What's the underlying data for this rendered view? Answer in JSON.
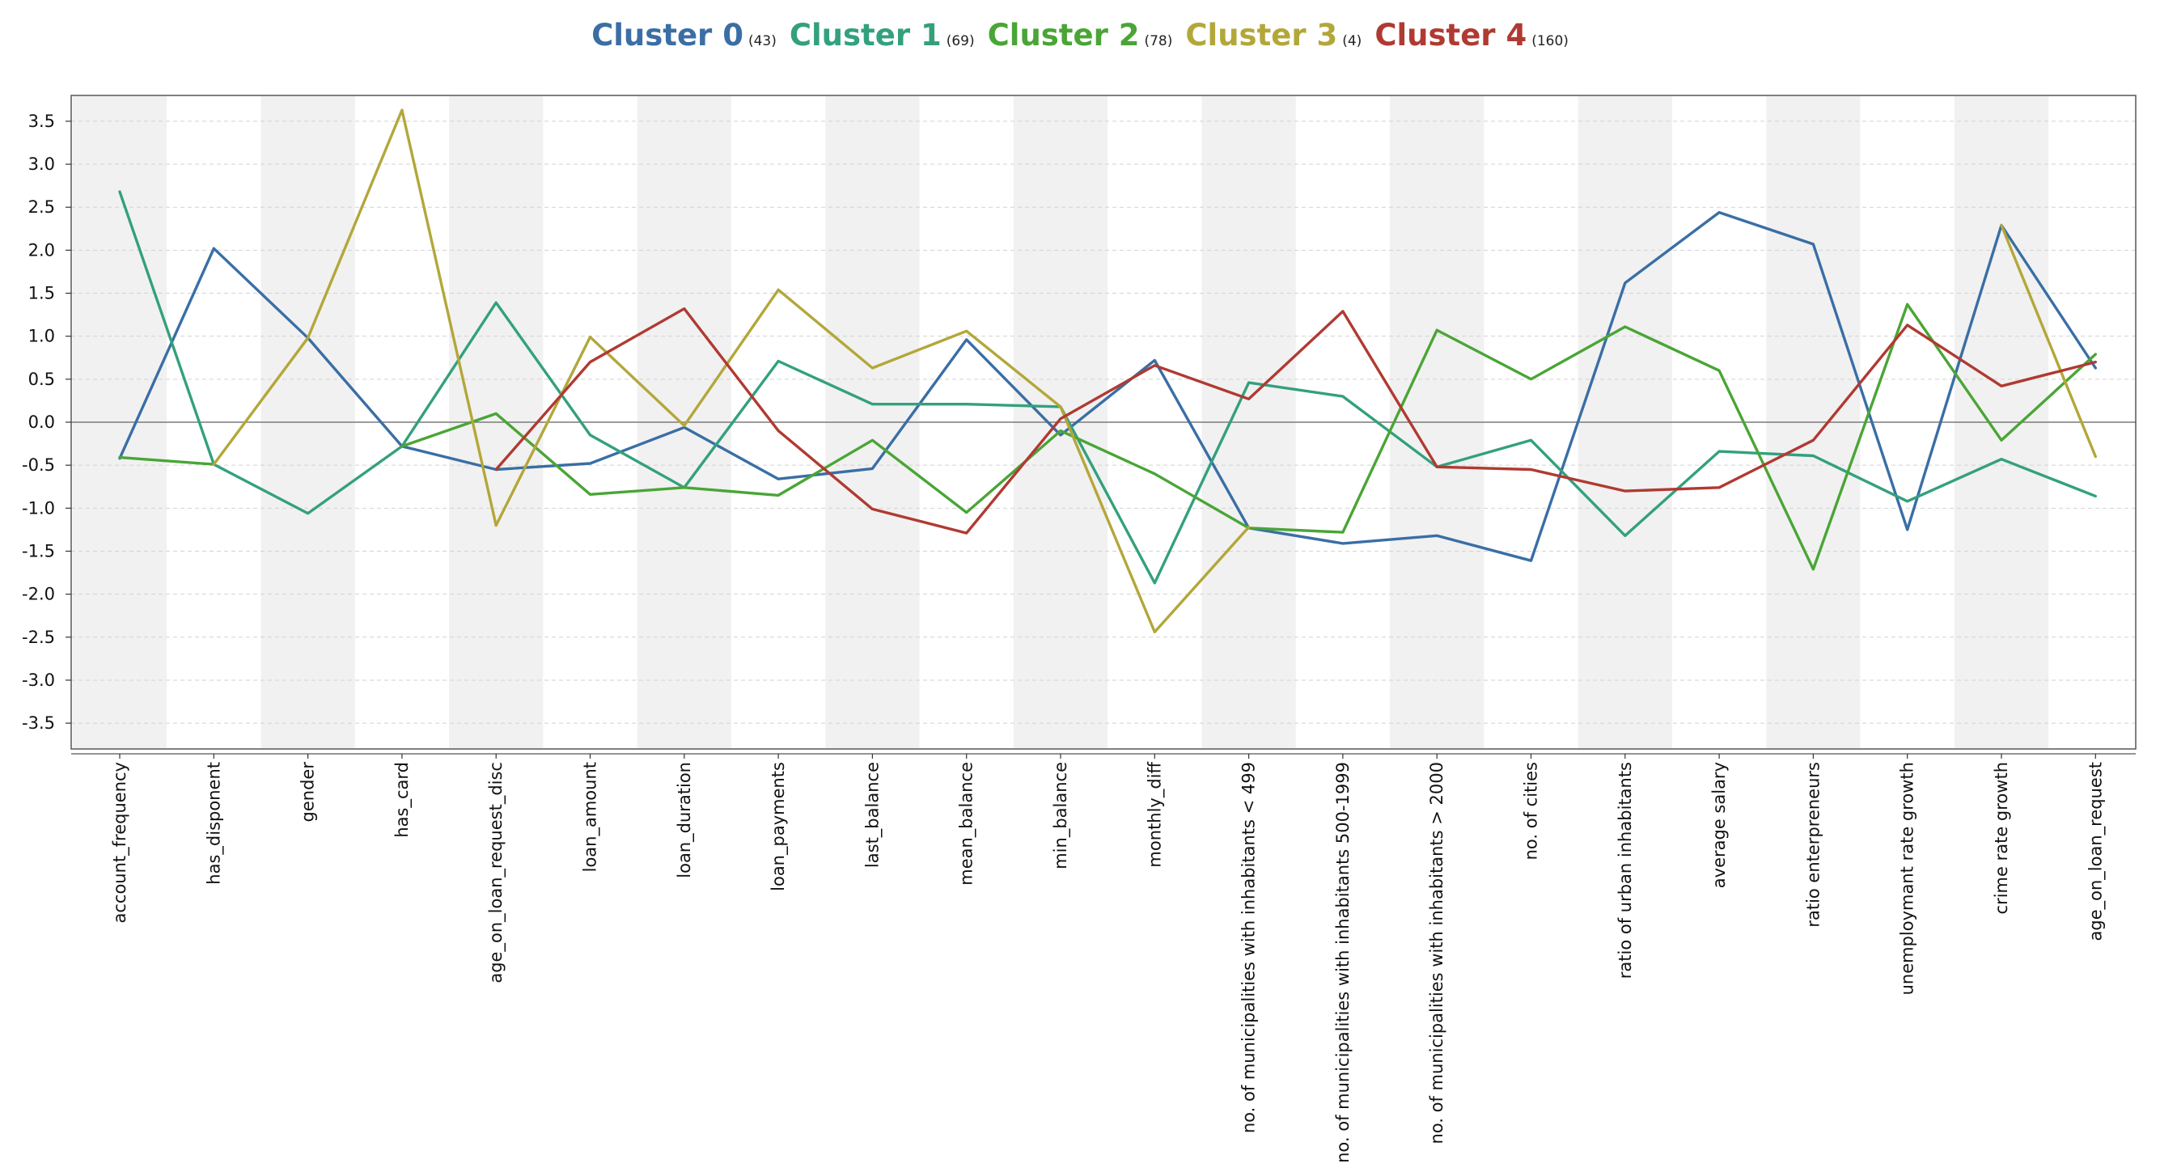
{
  "chart_data": {
    "type": "line",
    "title": "",
    "xlabel": "",
    "ylabel": "",
    "ylim": [
      -3.8,
      3.8
    ],
    "yticks": [
      -3.5,
      -3.0,
      -2.5,
      -2.0,
      -1.5,
      -1.0,
      -0.5,
      0.0,
      0.5,
      1.0,
      1.5,
      2.0,
      2.5,
      3.0,
      3.5
    ],
    "ytick_labels": [
      "-3.5",
      "-3.0",
      "-2.5",
      "-2.0",
      "-1.5",
      "-1.0",
      "-0.5",
      "0.0",
      "0.5",
      "1.0",
      "1.5",
      "2.0",
      "2.5",
      "3.0",
      "3.5"
    ],
    "grid": true,
    "legend_position": "top-center",
    "categories": [
      "account_frequency",
      "has_disponent",
      "gender",
      "has_card",
      "age_on_loan_request_disc",
      "loan_amount",
      "loan_duration",
      "loan_payments",
      "last_balance",
      "mean_balance",
      "min_balance",
      "monthly_diff",
      "no. of municipalities with inhabitants < 499",
      "no. of municipalities with inhabitants 500-1999",
      "no. of municipalities with inhabitants > 2000",
      "no. of cities",
      "ratio of urban inhabitants",
      "average salary",
      "ratio enterpreneurs",
      "unemploymant rate growth",
      "crime rate growth",
      "age_on_loan_request"
    ],
    "series": [
      {
        "name": "Cluster 0",
        "count": "(43)",
        "color": "#3a6ea5",
        "values": [
          -0.42,
          2.02,
          0.98,
          -0.28,
          -0.55,
          -0.48,
          -0.06,
          -0.66,
          -0.54,
          0.96,
          -0.15,
          0.72,
          -1.23,
          -1.41,
          -1.32,
          -1.61,
          1.62,
          2.44,
          2.07,
          -1.25,
          2.29,
          0.63
        ]
      },
      {
        "name": "Cluster 1",
        "count": "(69)",
        "color": "#33a07e",
        "values": [
          2.68,
          -0.49,
          -1.06,
          -0.28,
          1.39,
          -0.15,
          -0.76,
          0.71,
          0.21,
          0.21,
          0.18,
          -1.87,
          0.46,
          0.3,
          -0.52,
          -0.21,
          -1.32,
          -0.34,
          -0.39,
          -0.92,
          -0.43,
          -0.86
        ]
      },
      {
        "name": "Cluster 2",
        "count": "(78)",
        "color": "#4aa536",
        "values": [
          -0.41,
          -0.49,
          null,
          -0.28,
          0.1,
          -0.84,
          -0.76,
          -0.85,
          -0.21,
          -1.05,
          -0.1,
          -0.6,
          -1.23,
          -1.28,
          1.07,
          0.5,
          1.11,
          0.6,
          -1.71,
          1.37,
          -0.21,
          0.79
        ]
      },
      {
        "name": "Cluster 3",
        "count": "(4)",
        "color": "#b3a73a",
        "values": [
          null,
          -0.49,
          0.98,
          3.63,
          -1.2,
          0.99,
          -0.04,
          1.54,
          0.63,
          1.06,
          0.18,
          -2.44,
          -1.22,
          null,
          null,
          null,
          null,
          null,
          null,
          null,
          2.29,
          -0.4
        ]
      },
      {
        "name": "Cluster 4",
        "count": "(160)",
        "color": "#b03a32",
        "values": [
          null,
          null,
          null,
          null,
          -0.55,
          0.7,
          1.32,
          -0.1,
          -1.01,
          -1.29,
          0.04,
          0.66,
          0.27,
          1.29,
          -0.52,
          -0.55,
          -0.8,
          -0.76,
          -0.21,
          1.13,
          0.42,
          0.7
        ]
      }
    ]
  }
}
